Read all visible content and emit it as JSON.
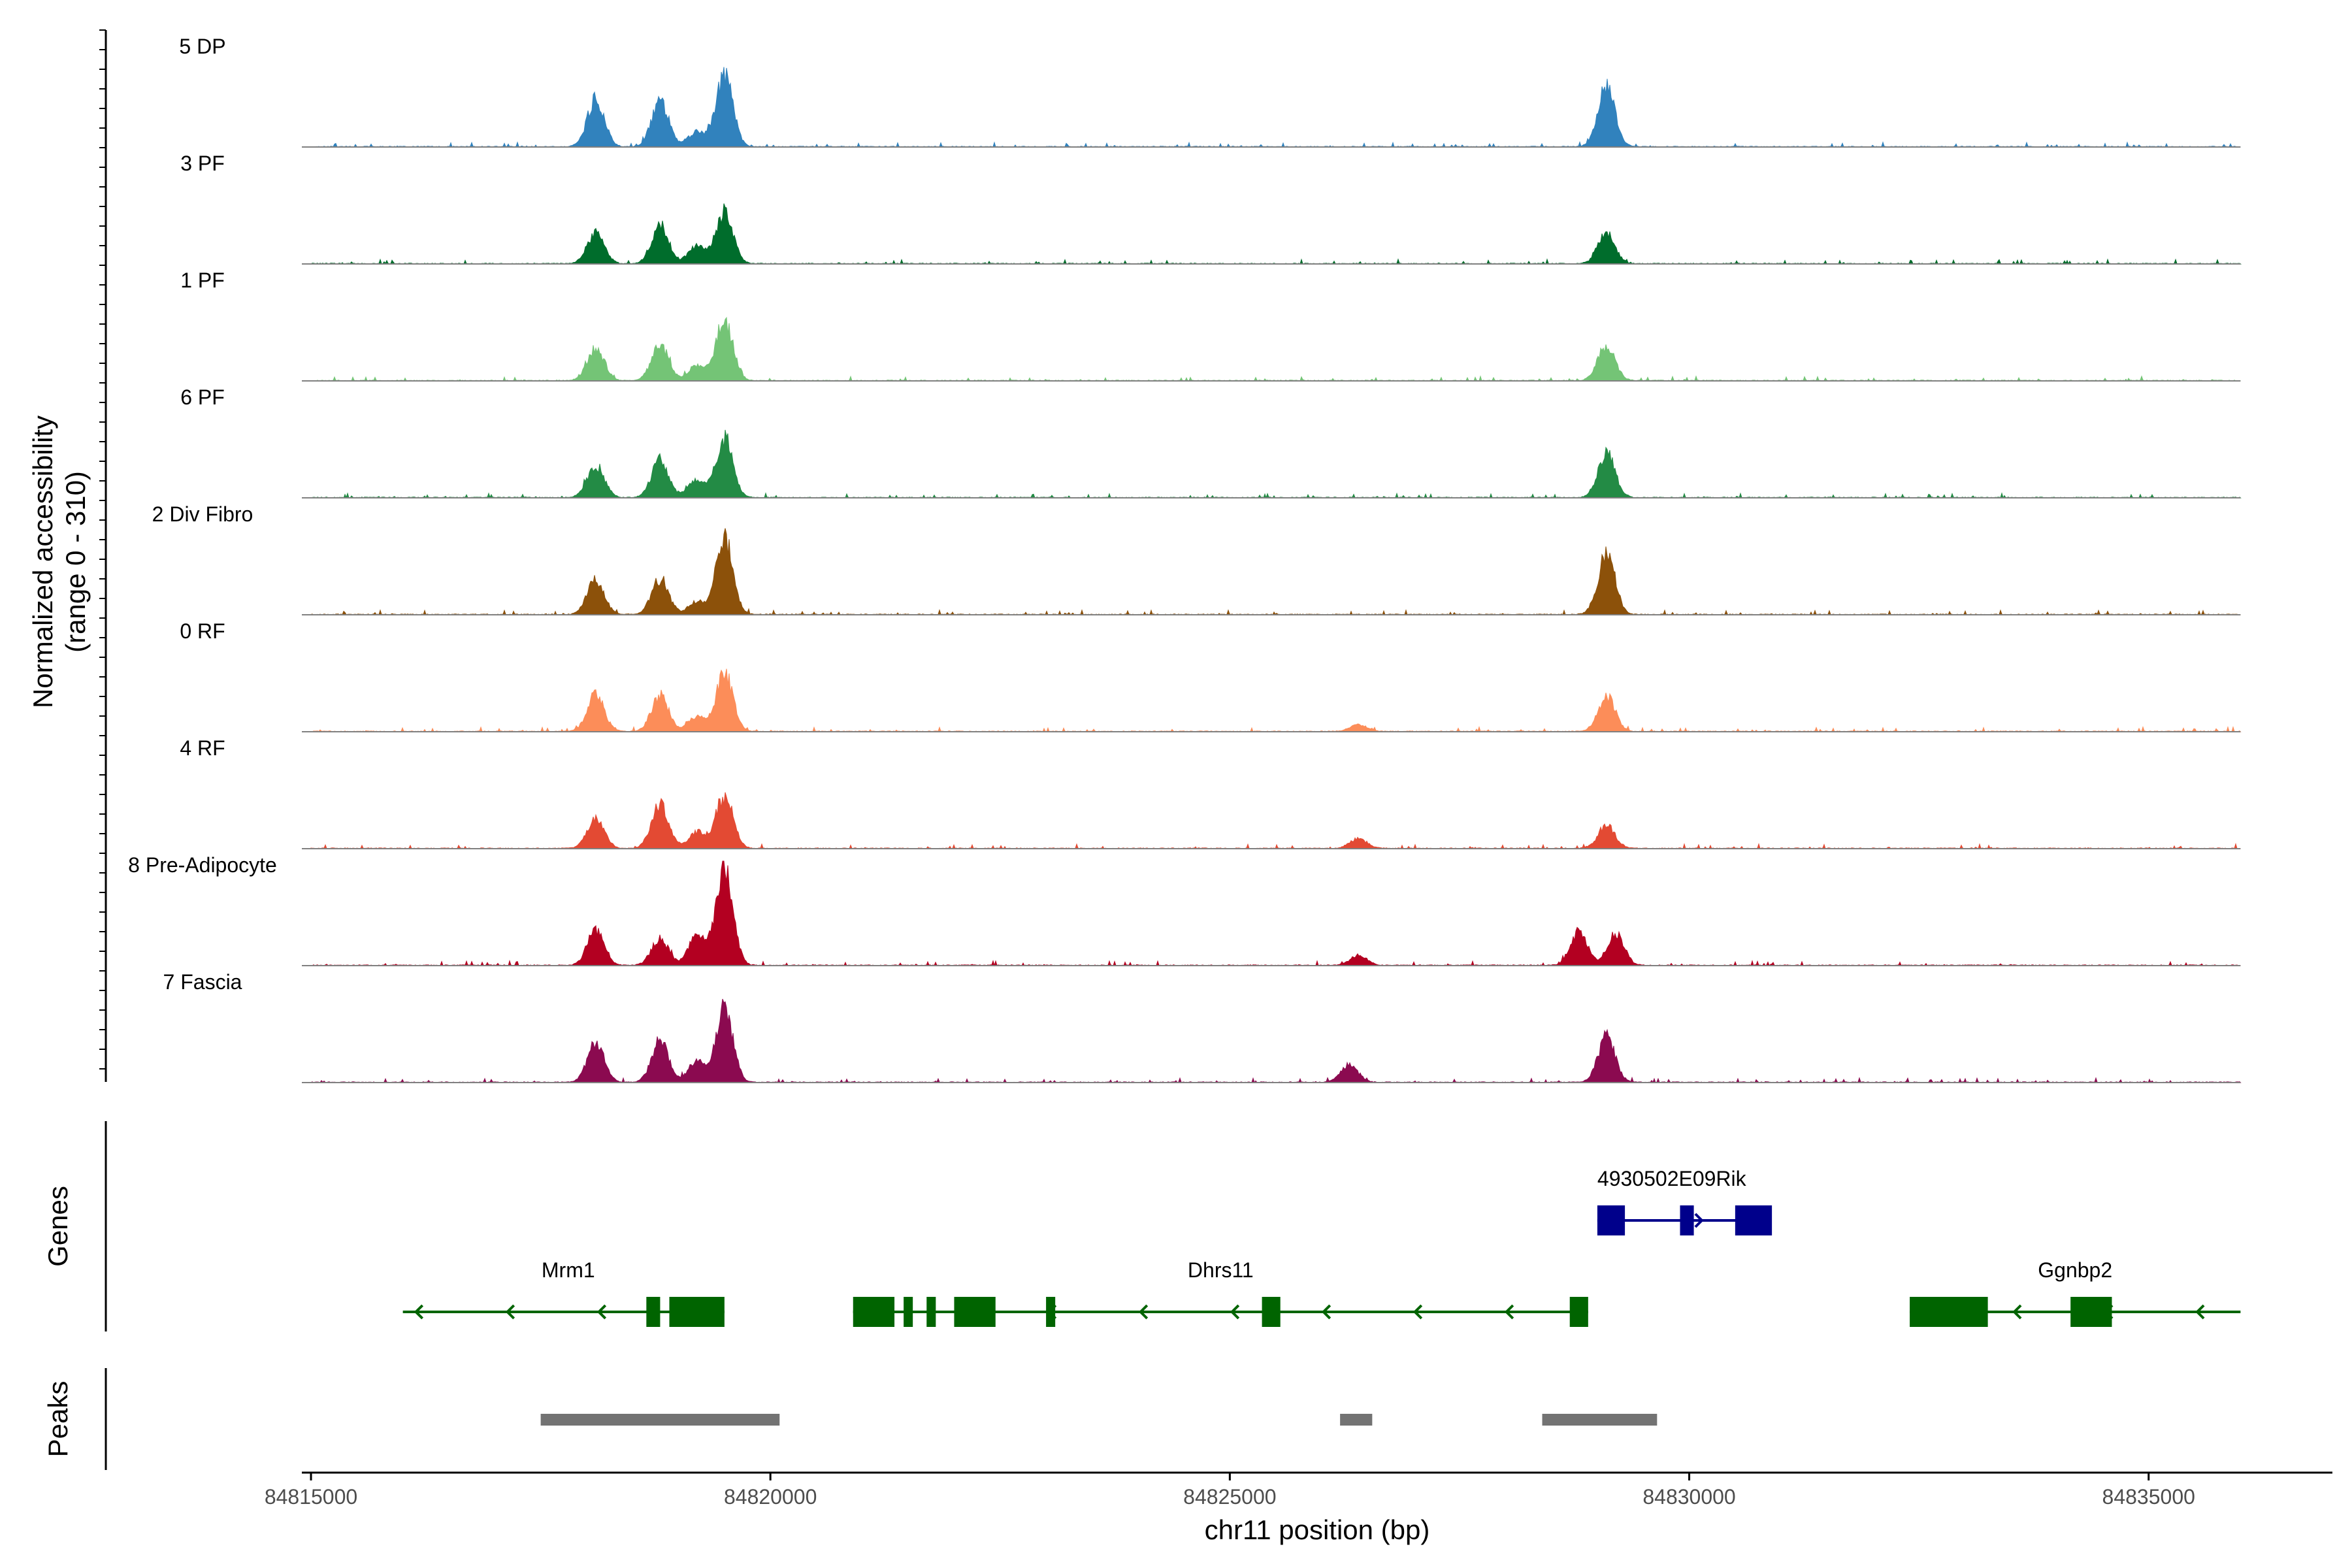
{
  "chart_data": {
    "type": "area",
    "title": "",
    "ylabel_line1": "Normalized accessibility",
    "ylabel_line2": "(range 0 - 310)",
    "ylim": [
      0,
      310
    ],
    "xlabel": "chr11 position (bp)",
    "xlim": [
      84815000,
      84837000
    ],
    "x_ticks": [
      84815000,
      84820000,
      84825000,
      84830000,
      84835000
    ],
    "x_tick_labels": [
      "84815000",
      "84820000",
      "84825000",
      "84830000",
      "84835000"
    ],
    "region_start": 84815000,
    "region_end": 84836000,
    "tracks": [
      {
        "name": "5 DP",
        "color": "#3182bd",
        "peaks": [
          [
            84818100,
            150
          ],
          [
            84818800,
            140
          ],
          [
            84819500,
            220
          ],
          [
            84829100,
            185
          ],
          [
            84819200,
            45
          ]
        ]
      },
      {
        "name": "3 PF",
        "color": "#006d2c",
        "peaks": [
          [
            84818100,
            95
          ],
          [
            84818800,
            120
          ],
          [
            84819500,
            160
          ],
          [
            84829100,
            95
          ],
          [
            84819200,
            55
          ]
        ]
      },
      {
        "name": "1 PF",
        "color": "#74c476",
        "peaks": [
          [
            84818100,
            100
          ],
          [
            84818800,
            110
          ],
          [
            84819500,
            185
          ],
          [
            84829100,
            110
          ],
          [
            84819200,
            45
          ]
        ]
      },
      {
        "name": "6 PF",
        "color": "#238b45",
        "peaks": [
          [
            84818100,
            100
          ],
          [
            84818800,
            115
          ],
          [
            84819500,
            185
          ],
          [
            84829100,
            140
          ],
          [
            84819200,
            55
          ]
        ]
      },
      {
        "name": "2 Div Fibro",
        "color": "#8c510a",
        "peaks": [
          [
            84818100,
            105
          ],
          [
            84818800,
            110
          ],
          [
            84819500,
            235
          ],
          [
            84829100,
            190
          ],
          [
            84819200,
            40
          ]
        ]
      },
      {
        "name": "0 RF",
        "color": "#fc8d59",
        "peaks": [
          [
            84818100,
            115
          ],
          [
            84818800,
            110
          ],
          [
            84819500,
            180
          ],
          [
            84829100,
            110
          ],
          [
            84826400,
            20
          ],
          [
            84819200,
            45
          ]
        ]
      },
      {
        "name": "4 RF",
        "color": "#e34a33",
        "peaks": [
          [
            84818100,
            95
          ],
          [
            84818800,
            140
          ],
          [
            84819500,
            165
          ],
          [
            84829100,
            70
          ],
          [
            84826400,
            30
          ],
          [
            84819200,
            50
          ]
        ]
      },
      {
        "name": "8 Pre-Adipocyte",
        "color": "#b30021",
        "peaks": [
          [
            84818100,
            110
          ],
          [
            84818800,
            85
          ],
          [
            84819500,
            310
          ],
          [
            84828800,
            105
          ],
          [
            84829200,
            95
          ],
          [
            84826400,
            30
          ],
          [
            84819200,
            90
          ]
        ]
      },
      {
        "name": "7 Fascia",
        "color": "#8b0a50",
        "peaks": [
          [
            84818100,
            120
          ],
          [
            84818800,
            125
          ],
          [
            84819500,
            225
          ],
          [
            84829100,
            140
          ],
          [
            84826300,
            55
          ],
          [
            84819200,
            65
          ]
        ]
      }
    ],
    "genes_label": "Genes",
    "genes": [
      {
        "name": "4930502E09Rik",
        "strand": "+",
        "color": "#00008b",
        "start": 84829000,
        "end": 84830800,
        "row": 0,
        "exons": [
          [
            84829000,
            84829300
          ],
          [
            84829900,
            84830050
          ],
          [
            84830500,
            84830900
          ]
        ],
        "label_pos": 84829000
      },
      {
        "name": "Mrm1",
        "strand": "-",
        "color": "#006400",
        "start": 84816000,
        "end": 84819500,
        "row": 1,
        "exons": [
          [
            84818650,
            84818800
          ],
          [
            84818900,
            84819500
          ]
        ],
        "label_pos": 84817800
      },
      {
        "name": "Dhrs11",
        "strand": "-",
        "color": "#006400",
        "start": 84820900,
        "end": 84828900,
        "row": 1,
        "exons": [
          [
            84820900,
            84821350
          ],
          [
            84821450,
            84821550
          ],
          [
            84821700,
            84821800
          ],
          [
            84822000,
            84822450
          ],
          [
            84823000,
            84823100
          ],
          [
            84825350,
            84825550
          ],
          [
            84828700,
            84828900
          ]
        ],
        "label_pos": 84824900
      },
      {
        "name": "Ggnbp2",
        "strand": "-",
        "color": "#006400",
        "start": 84832400,
        "end": 84836000,
        "row": 1,
        "exons": [
          [
            84832400,
            84833250
          ],
          [
            84834150,
            84834600
          ]
        ],
        "label_pos": 84834200
      }
    ],
    "peaks_label": "Peaks",
    "peak_regions": [
      [
        84817500,
        84820100
      ],
      [
        84826200,
        84826550
      ],
      [
        84828400,
        84829650
      ]
    ],
    "peak_color": "#737373"
  }
}
